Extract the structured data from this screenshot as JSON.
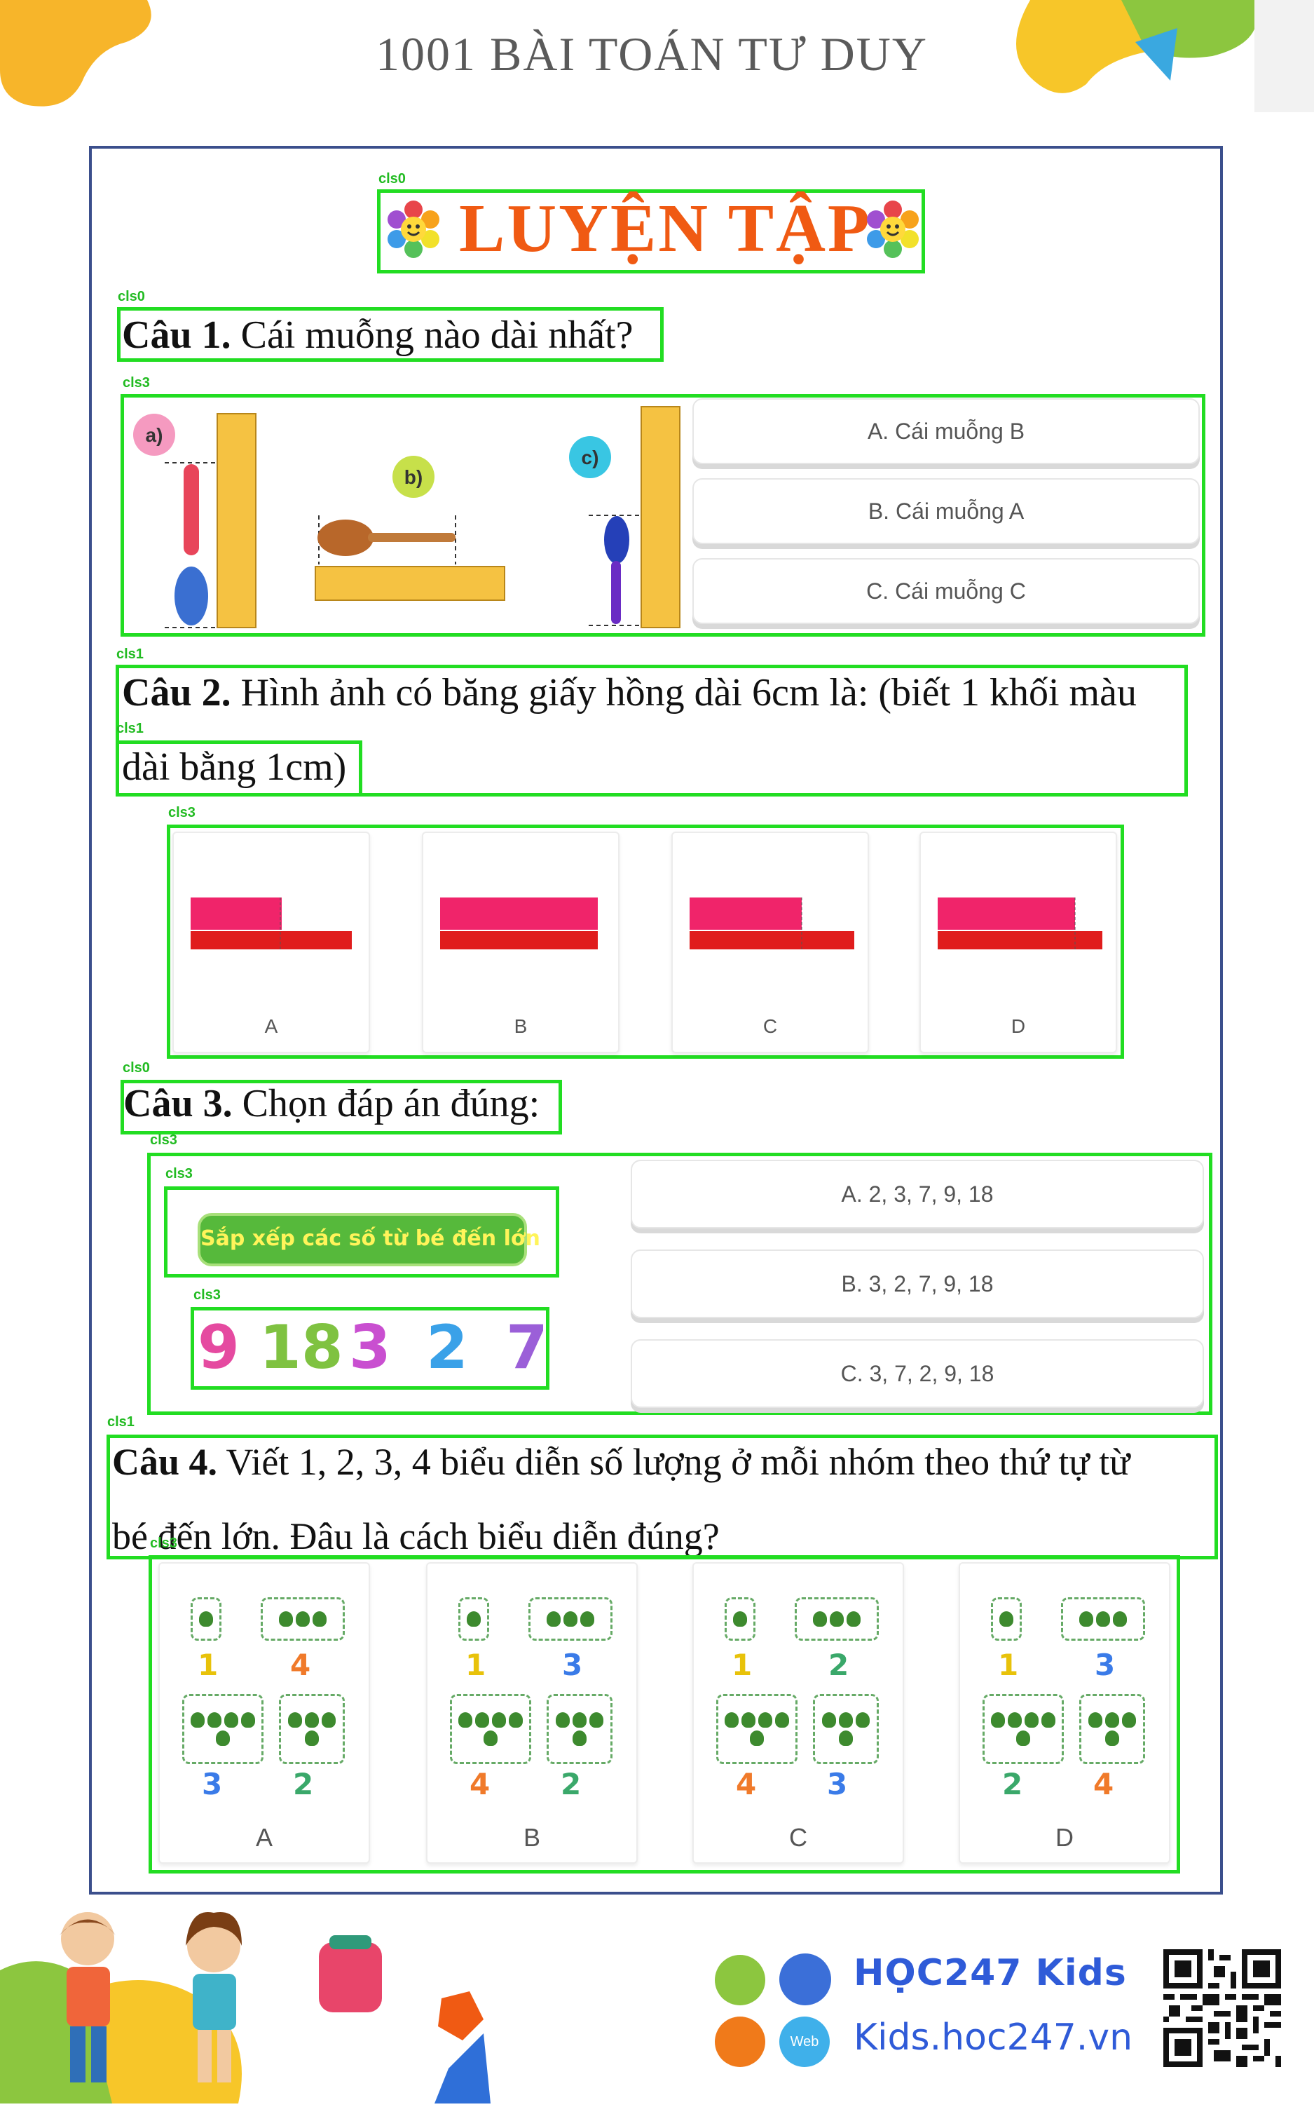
{
  "header": {
    "title": "1001 BÀI TOÁN TƯ DUY"
  },
  "section_title": "LUYỆN TẬP",
  "detect_labels": {
    "l0": "cls0",
    "l1": "cls0",
    "l2": "cls3",
    "l3": "cls1",
    "l4": "cls1",
    "l5": "cls3",
    "l6": "cls0",
    "l7": "cls3",
    "l8": "cls3",
    "l9": "cls3",
    "l10": "cls1",
    "l11": "cls3"
  },
  "q1": {
    "num": "Câu 1.",
    "text": " Cái muỗng nào dài nhất?",
    "spoon_labels": [
      "a)",
      "b)",
      "c)"
    ],
    "options": [
      "A. Cái muỗng B",
      "B. Cái muỗng A",
      "C. Cái muỗng C"
    ]
  },
  "q2": {
    "num": "Câu 2.",
    "line1": " Hình ảnh có băng giấy hồng dài 6cm là: (biết 1 khối màu",
    "line2": "dài bằng 1cm)",
    "choices": [
      "A",
      "B",
      "C",
      "D"
    ]
  },
  "q3": {
    "num": "Câu 3.",
    "text": " Chọn đáp án đúng:",
    "banner": "Sắp xếp các số từ bé đến lớn",
    "digits": [
      "9",
      "18",
      "3",
      "2",
      "7"
    ],
    "digit_colors": [
      "#e54aa0",
      "#7fc241",
      "#c94fd0",
      "#3aa1e8",
      "#9b5fd8"
    ],
    "options": [
      "A. 2, 3, 7, 9, 18",
      "B. 3, 2, 7, 9, 18",
      "C. 3, 7, 2, 9, 18"
    ]
  },
  "q4": {
    "num": "Câu 4.",
    "line1": " Viết 1, 2, 3, 4 biểu diễn số lượng ở mỗi nhóm theo thứ tự từ",
    "line2": "bé đến lớn. Đâu là cách biểu diễn đúng?",
    "cards": [
      {
        "label": "A",
        "n1": "1",
        "n2": "4",
        "n3": "3",
        "n4": "2"
      },
      {
        "label": "B",
        "n1": "1",
        "n2": "3",
        "n3": "4",
        "n4": "2"
      },
      {
        "label": "C",
        "n1": "1",
        "n2": "2",
        "n3": "4",
        "n4": "3"
      },
      {
        "label": "D",
        "n1": "1",
        "n2": "3",
        "n3": "2",
        "n4": "4"
      }
    ]
  },
  "footer": {
    "brand": "HỌC247 Kids",
    "url": "Kids.hoc247.vn",
    "web": "Web"
  }
}
